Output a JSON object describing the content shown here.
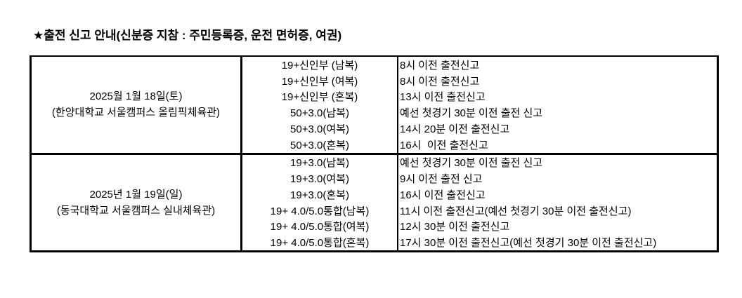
{
  "title": "★출전 신고 안내(신분증 지참 : 주민등록증, 운전 면허증, 여권)",
  "table": {
    "rows": [
      {
        "date": "2025월 1월 18일(토)",
        "venue": "(한양대학교 서울캠퍼스 올림픽체육관)",
        "events": [
          {
            "division": "19+신인부 (남복)",
            "deadline": "8시 이전 출전신고"
          },
          {
            "division": "19+신인부 (여복)",
            "deadline": "8시 이전 출전신고"
          },
          {
            "division": "19+신인부 (혼복)",
            "deadline": "13시 이전 출전신고"
          },
          {
            "division": "50+3.0(남복)",
            "deadline": "예선 첫경기 30분 이전 출전 신고"
          },
          {
            "division": "50+3.0(여복)",
            "deadline": "14시 20분 이전 출전신고"
          },
          {
            "division": "50+3.0(혼복)",
            "deadline": "16시  이전 출전신고"
          }
        ]
      },
      {
        "date": "2025년 1월 19일(일)",
        "venue": "(동국대학교 서울캠퍼스 실내체육관)",
        "events": [
          {
            "division": "19+3.0(남복)",
            "deadline": "예선 첫경기 30분 이전 출전 신고"
          },
          {
            "division": "19+3.0(여복)",
            "deadline": "9시 이전 출전 신고"
          },
          {
            "division": "19+3.0(혼복)",
            "deadline": "16시 이전 출전신고"
          },
          {
            "division": "19+ 4.0/5.0통합(남복)",
            "deadline": "11시 이전 출전신고(예선 첫경기 30분 이전 출전신고)"
          },
          {
            "division": "19+ 4.0/5.0통합(여복)",
            "deadline": "12시 30분 이전 출전신고"
          },
          {
            "division": "19+ 4.0/5.0통합(혼복)",
            "deadline": "17시 30분 이전 출전신고(예선 첫경기 30분 이전 출전신고)"
          }
        ]
      }
    ]
  }
}
